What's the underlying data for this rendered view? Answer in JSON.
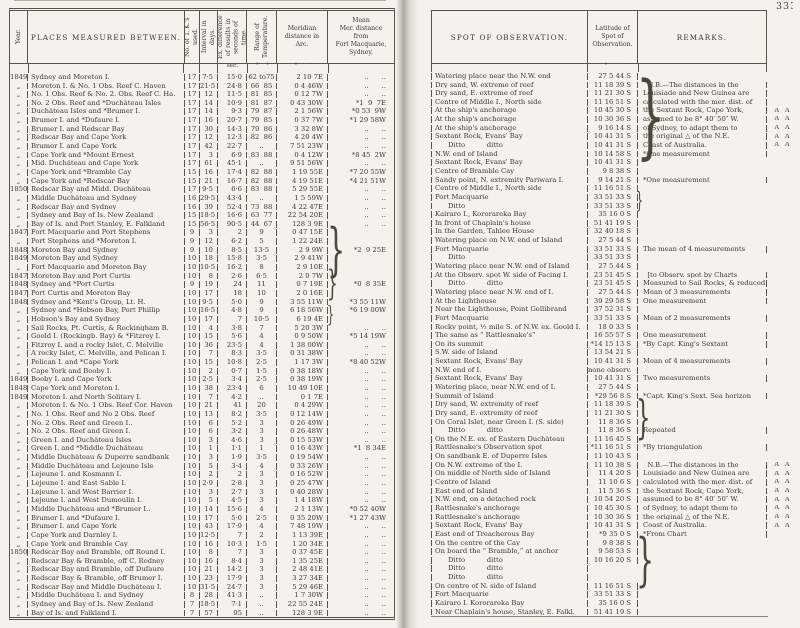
{
  "page_number": "33",
  "page_number_partial": "3",
  "left_page": {
    "columns": [
      "Year.",
      "PLACES  MEASURED  BETWEEN.",
      "No. of T. K.'s used.",
      "Interval in days.",
      "Ex. difference of results in seconds of time.",
      "Range of Temperature.",
      "Meridian\ndistance in\nArc.",
      "Mean\nMer.  distance\nfrom\nFort Macquarie,\nSydney."
    ],
    "units": [
      "",
      "",
      "",
      "",
      "sec.",
      "°    °",
      "°   ′   ″",
      ""
    ],
    "rows": [
      [
        "1849",
        "Sydney and Moreton I.",
        "17",
        "7·5",
        "15·0",
        "62 to75",
        "2 10 7E",
        "..      .."
      ],
      [
        "„",
        "Moreton I. & No. 1 Obs. Reef C. Haven",
        "17",
        "21·5",
        "24·8",
        "66  85",
        "0 4 46W",
        "..      .."
      ],
      [
        "„",
        "No. 1 Obs. Reef & No. 2. Obs. Reef C. Ha.",
        "17",
        "12",
        "11·5",
        "81  85",
        "0 12 7W",
        "..      .."
      ],
      [
        "„",
        "No. 2 Obs. Reef and *Duchâteau Isles",
        "17",
        "14",
        "10·9",
        "81  87",
        "0 43 30W",
        "*1  9  7E"
      ],
      [
        "„",
        "Duchâteau Isles and *Brumer I.",
        "17",
        "14",
        "9·3",
        "79  87",
        "2 1 56W",
        "*0 53  9W"
      ],
      [
        "„",
        "Brumer I. and *Dufaure I.",
        "17",
        "16",
        "20·7",
        "79  85",
        "0 37 7W",
        "*1 29 58W"
      ],
      [
        "„",
        "Brumer I. and Redscar Bay",
        "17",
        "30",
        "14·3",
        "79  86",
        "3 32 8W",
        "..      .."
      ],
      [
        "„",
        "Redscar Bay and Cape York",
        "17",
        "12",
        "12·3",
        "82  86",
        "4 20 4W",
        "..      .."
      ],
      [
        "„",
        "Brumer I. and Cape York",
        "17",
        "42",
        "22·7",
        "..",
        "7 51 23W",
        "..      .."
      ],
      [
        "„",
        "Cape York and *Mount Ernest",
        "17",
        "3",
        "6·9",
        "83  88",
        "0 4 12W",
        "*8 45  2W"
      ],
      [
        "„",
        "Mid. Duchâteau and Cape York",
        "17",
        "61",
        "45·1",
        "..",
        "9 51 56W",
        "..      .."
      ],
      [
        "„",
        "Cape York and *Bramble Cay",
        "15",
        "16",
        "17·4",
        "82  88",
        "1 19 55E",
        "*7 20 55W"
      ],
      [
        "„",
        "Cape York and *Redscar Bay",
        "15",
        "21",
        "16·7",
        "82  88",
        "4 19 51E",
        "*4 21 51W"
      ],
      [
        "1850",
        "Redscar Bay and Midd. Duchâteau",
        "17",
        "9·5",
        "6·6",
        "83  88",
        "5 29 55E",
        "..      .."
      ],
      [
        "„",
        "Middle Duchâteau and Sydney",
        "16",
        "29·5",
        "43·4",
        "..",
        "1 5 59W",
        "..      .."
      ],
      [
        "„",
        "Redscar Bay and Sydney",
        "16",
        "39",
        "52·4",
        "73  88",
        "4 22 47E",
        "..      .."
      ],
      [
        "„",
        "Sydney and Bay of Is. New Zealand",
        "15",
        "18·5",
        "16·6",
        "63  77",
        "22 54 20E",
        "..      .."
      ],
      [
        "„",
        "Bay of Is. and Port Stanley, E. Falkland",
        "15",
        "56·5",
        "90·5",
        "44  67",
        "128 3 9E",
        "..      .."
      ],
      [
        "1847",
        "Fort Macquarie and Port Stephens",
        "9",
        "3",
        "2",
        "9",
        "0 47 15E",
        ""
      ],
      [
        "„",
        "Port Stephens and *Moreton I.",
        "9",
        "12",
        "6·2",
        "5",
        "1 22 24E",
        ""
      ],
      [
        "1848",
        "Moreton Bay and Sydney",
        "9",
        "10",
        "8·5",
        "13·5",
        "2 9 9W",
        "*2  9 25E"
      ],
      [
        "1849",
        "Moreton Bay and Sydney",
        "10",
        "18",
        "15·8",
        "3·5",
        "2 9 41W",
        ""
      ],
      [
        "„",
        "Fort Macquarie and Moreton Bay",
        "10",
        "10·5",
        "16·2",
        "8",
        "2 9 10E",
        ""
      ],
      [
        "1847",
        "Moreton Bay and Port Curtis",
        "10",
        "8",
        "2·6",
        "6·5",
        "2 0 7W",
        ""
      ],
      [
        "1848",
        "Sydney and *Port Curtis",
        "9",
        "19",
        "24",
        "11",
        "0 7 19E",
        "*0  8 35E"
      ],
      [
        "1847",
        "Port Curtis and Moreton Bay",
        "10",
        "17",
        "18",
        "10",
        "2 0 16E",
        ""
      ],
      [
        "1848",
        "Sydney and *Kent's Group, Lt. H.",
        "10",
        "9·5",
        "5·0",
        "9",
        "3 55 11W",
        "*3 55 11W"
      ],
      [
        "„",
        "Sydney and *Hobson Bay, Port Phillip",
        "10",
        "16·5",
        "4·8",
        "9",
        "6 18 56W",
        "*6 19 00W"
      ],
      [
        "„",
        "Hobson's Bay and Sydney",
        "10",
        "17",
        "7",
        "10·5",
        "6 19 4E",
        ""
      ],
      [
        "„",
        "Sail Rocks, Pt. Curtis, & Rockingham B.",
        "10",
        "4",
        "3·8",
        "7",
        "5 20 3W",
        "..      .."
      ],
      [
        "„",
        "Goold I. (Rockingb. Bay) & *Fitzroy I.",
        "10",
        "15",
        "5·6",
        "4",
        "0 9 50W",
        "*5 14 19W"
      ],
      [
        "„",
        "Fitzroy I. and a rocky Islet, C. Melville",
        "10",
        "36",
        "23·5",
        "4",
        "1 38 00W",
        "..      .."
      ],
      [
        "„",
        "A rocky Islet, C. Melville, and Pelican I.",
        "10",
        "7",
        "8·3",
        "3·5",
        "0 31 38W",
        "..      .."
      ],
      [
        "„",
        "Pelican I. and *Cape York",
        "10",
        "15",
        "10·8",
        "2·5",
        "1 17 3W",
        "*8 40 52W"
      ],
      [
        "„",
        "Cape York and Booby I.",
        "10",
        "2",
        "0·7",
        "1·5",
        "0 38 18W",
        "..      .."
      ],
      [
        "1849",
        "Booby I. and Cape York",
        "10",
        "2·5",
        "3·4",
        "2·5",
        "0 38 19W",
        "..      .."
      ],
      [
        "1848",
        "Cape York and Moreton I.",
        "10",
        "38",
        "23·4",
        "6",
        "10 49 10E",
        "..      .."
      ],
      [
        "1849",
        "Moreton I. and North Solitary I.",
        "10",
        "7",
        "4·2",
        "..",
        "0 1 7E",
        "..      .."
      ],
      [
        "„",
        "Moreton I. & No. 1 Obs. Reef Cor. Haven",
        "10",
        "21",
        "41",
        "20",
        "0 4 29W",
        "..      .."
      ],
      [
        "„",
        "No. 1 Obs. Reef and No 2 Obs. Reef",
        "10",
        "13",
        "8·2",
        "3·5",
        "0 12 14W",
        "..      .."
      ],
      [
        "„",
        "No. 2 Obs. Reef and Green I..",
        "10",
        "6",
        "5·2",
        "3",
        "0 26 49W",
        "..      .."
      ],
      [
        "„",
        "No. 2 Obs. Reef and Green I.",
        "10",
        "6",
        "3·2",
        "3",
        "0 26 48W",
        "..      .."
      ],
      [
        "„",
        "Green I. and Duchâteau Isles",
        "10",
        "3",
        "4·6",
        "3",
        "0 15 53W",
        "..      .."
      ],
      [
        "„",
        "Green I. and *Middle Duchâteau",
        "10",
        "1",
        "1·1",
        "1",
        "0 16 43W",
        "*1  8 34E"
      ],
      [
        "„",
        "Middle Duchâteau & Duperre sandbank",
        "10",
        "3",
        "1·9",
        "3·5",
        "0 19 54W",
        "..      .."
      ],
      [
        "„",
        "Middle Duchâteau and Lejeune Isle",
        "10",
        "5",
        "3·4",
        "4",
        "0 33 26W",
        "..      .."
      ],
      [
        "„",
        "Lejeune I. and Kosmann I.",
        "10",
        "2",
        "2",
        "3",
        "0 16 52W",
        "..      .."
      ],
      [
        "„",
        "Lejeune I. and East Sable I.",
        "10",
        "2·9",
        "2·8",
        "3",
        "0 25 47W",
        "..      .."
      ],
      [
        "„",
        "Lejeune I. and West Barrier I.",
        "10",
        "3",
        "2·7",
        "3",
        "0 40 28W",
        "..      .."
      ],
      [
        "„",
        "Lejeune I. and West Dumoulin I.",
        "10",
        "5",
        "4·5",
        "3",
        "1 4 18W",
        "..      .."
      ],
      [
        "„",
        "Middle Duchâteau and *Brumer I..",
        "10",
        "14",
        "15·6",
        "4",
        "2 1 13W",
        "*0 52 40W"
      ],
      [
        "„",
        "Brumer I. and *Dufaure I.",
        "10",
        "17",
        "5·0",
        "2·5",
        "0 35 20W",
        "*1 27 43W"
      ],
      [
        "„",
        "Brumer I. and Cape York",
        "10",
        "43",
        "17·9",
        "4",
        "7 48 19W",
        "..      .."
      ],
      [
        "„",
        "Cape York and Darnley I.",
        "10",
        "12·5",
        "7",
        "2",
        "1 13 39E",
        "..      .."
      ],
      [
        "„",
        "Cape York and Bramble Cay",
        "10",
        "16",
        "10·3",
        "1·5",
        "1 20 34E",
        "..      .."
      ],
      [
        "1850",
        "Redscar Bay and Bramble, off Round I.",
        "10",
        "8",
        "7",
        "3",
        "0 37 45E",
        "..      .."
      ],
      [
        "„",
        "Redscar Bay & Bramble, off C. Rodney",
        "10",
        "16",
        "8·4",
        "3",
        "1 35 25E",
        "..      .."
      ],
      [
        "„",
        "Redscar Bay and Bramble, off Dufaure",
        "10",
        "21",
        "14·2",
        "3",
        "2 48 41E",
        "..      .."
      ],
      [
        "„",
        "Redscar Bay & Bramble, off Brumer I.",
        "10",
        "23",
        "17·9",
        "3",
        "3 27 34E",
        "..      .."
      ],
      [
        "„",
        "Redscar Bay and Middle Duchâteau I.",
        "10",
        "31·5",
        "24·7",
        "3",
        "5 29 46E",
        "..      .."
      ],
      [
        "„",
        "Middle Duchâteau I. and Sydney",
        "8",
        "28",
        "41·3",
        "..",
        "1 7 30W",
        "..      .."
      ],
      [
        "„",
        "Sydney and Bay of Is. New Zealand",
        "7",
        "18·5",
        "7·1",
        "..",
        "22 55 24E",
        "..      .."
      ],
      [
        "„",
        "Bay of Is. and Falkland I.",
        "7",
        "57",
        "95",
        "..",
        "128 3 9E",
        "..      .."
      ]
    ],
    "braces": [
      {
        "from": 18,
        "to": 22
      },
      {
        "from": 23,
        "to": 25
      },
      {
        "from": 27,
        "to": 28
      }
    ]
  },
  "right_page": {
    "columns": [
      "SPOT  OF  OBSERVATION.",
      "Latitude of\nSpot of\nObservation.",
      "REMARKS."
    ],
    "lat_units": "°   ′   ″",
    "rows": [
      [
        "Watering place near the N.W. end",
        "27 5 44 S",
        "",
        ""
      ],
      [
        "Dry sand, W. extreme of reef",
        "11 18 39 S",
        "  N.B.—The distances in the",
        ""
      ],
      [
        "Dry sand, E. extreme of reef",
        "11 21 30 S",
        "Louisiade and New Guinea are",
        ""
      ],
      [
        "Centre of Middle I., North side",
        "11 16 51 S",
        "calculated with the mer. dist. of",
        ""
      ],
      [
        "At the ship's anchorage",
        "10 45 30 S",
        "the Sextant Rock, Cape York,",
        "A A"
      ],
      [
        "At the ship's anchorage",
        "10 30 36 S",
        "assumed to be 8° 40′ 50″ W.",
        "A A"
      ],
      [
        "At the ship's anchorage",
        "9 16 14 S",
        "of Sydney, to adapt them to",
        "A A"
      ],
      [
        "Sextant Rock, Evans' Bay",
        "10 41 31 S",
        "the original △ of the N.E.",
        "A A"
      ],
      [
        "      Ditto          ditto",
        "10 41 31 S",
        "Coast of Australia.",
        "A A"
      ],
      [
        "N.W. end of Island",
        "10 14 58 S",
        "*One measurement",
        ""
      ],
      [
        "Sextant Rock, Evans' Bay",
        "10 41 31 S",
        "",
        ""
      ],
      [
        "Centre of Bramble Cay",
        "9 8 38 S",
        "",
        ""
      ],
      [
        "Sandy point, N. extremity Pariwara I.",
        "9 14 21 S",
        "*One measurement",
        ""
      ],
      [
        "Centre of Middle I., North side",
        "11 16 51 S",
        "",
        ""
      ],
      [
        "Port Macquarie",
        "33 51 33 S",
        "",
        ""
      ],
      [
        "      Ditto",
        "33 51 33 S",
        "",
        ""
      ],
      [
        "Kairaro I., Kororareka Bay",
        "35 16 0 S",
        "",
        ""
      ],
      [
        "In front of Chaplain's house",
        "51 41 19 S",
        "",
        ""
      ],
      [
        "In the Garden, Tahlee House",
        "32 40 18 S",
        "",
        ""
      ],
      [
        "Watering place on N.W. end of Island",
        "27 5 44 S",
        "",
        ""
      ],
      [
        "Fort Macquarie",
        "33 51 33 S",
        "The mean of 4 measurements",
        ""
      ],
      [
        "      Ditto",
        "33 51 33 S",
        "",
        ""
      ],
      [
        "Watering place near N.W. end of Island",
        "27 5 44 S",
        "",
        ""
      ],
      [
        "At the Observ. spot W. side of Facing I.",
        "23 51 45 S",
        "  [to Observ. spot by Charts",
        ""
      ],
      [
        "      Ditto          ditto",
        "23 51 45 S",
        "Measured to Sail Rocks, & reduced",
        ""
      ],
      [
        "Watering place near N.W. end of I.",
        "27 5 44 S",
        "Mean of 3 measurements",
        ""
      ],
      [
        "At the Lighthouse",
        "39 29 58 S",
        "One measurement",
        ""
      ],
      [
        "Near the Lighthouse, Point Gellibrand",
        "37 52 31 S",
        "",
        ""
      ],
      [
        "Fort Macquarie",
        "33 51 33 S",
        "Mean of 2 measurements",
        ""
      ],
      [
        "Rocky point, ½ mile S. of N.W. ex. Goold I.",
        "18 0 33 S",
        "",
        ""
      ],
      [
        "The same as “ Rattlesnake's”",
        "16 55 57 S",
        "One measurement",
        ""
      ],
      [
        "On its summit",
        "*14 15 13 S",
        "*By Capt. King's Sextant",
        ""
      ],
      [
        "S.W. side of Island",
        "13 54 21 S",
        "",
        ""
      ],
      [
        "Sextant Rock, Evans' Bay",
        "10 41 31 S",
        "Mean of 4 measurements",
        ""
      ],
      [
        "N.W. end of I.",
        "none observ.",
        "",
        ""
      ],
      [
        "Sextant Rock, Evans' Bay",
        "10 41 31 S",
        "Two measurements",
        ""
      ],
      [
        "Watering place, near N.W. end of I.",
        "27 5 44 S",
        "",
        ""
      ],
      [
        "Summit of Island",
        "*29 56 8 S",
        "*Capt. King's Sext. Sea horizon",
        ""
      ],
      [
        "Dry sand, W. extremity of reef",
        "11 18 39 S",
        "",
        ""
      ],
      [
        "Dry sand, E. extremity of reef",
        "11 21 30 S",
        "",
        ""
      ],
      [
        "On Coral Islet, near Green I. (S. side)",
        "11 8 36 S",
        "",
        ""
      ],
      [
        "      Ditto          ditto",
        "11 8 36 S",
        "Repeated",
        ""
      ],
      [
        "On the N.E. ex. of Eastern Duchâteau",
        "11 16 45 S",
        "",
        ""
      ],
      [
        "Rattlesnake's Observation spot",
        "*11 16 51 S",
        "*By triangulation",
        ""
      ],
      [
        "On sandbank E. of Duperre Isles",
        "11 10 43 S",
        "",
        ""
      ],
      [
        "On N.W. extreme of the I.",
        "11 10 38 S",
        "  N.B.—The distances in the",
        "A A"
      ],
      [
        "On middle of North side of Island",
        "11 4 20 S",
        "Louisiade and New Guinea are",
        "A A"
      ],
      [
        "Centre of Island",
        "11 10 6 S",
        "calculated with the mer. dist. of",
        "A A"
      ],
      [
        "East end of Island",
        "11 5 36 S",
        "the Sextant Rock, Cape York,",
        "A A"
      ],
      [
        "N.W. end, on a detached rock",
        "10 54 20 S",
        "assumed to be 8° 40′ 50″ W.",
        "A A"
      ],
      [
        "Rattlesnake's anchorage",
        "10 45 30 S",
        "of Sydney, to adapt them to",
        "A A"
      ],
      [
        "Rattlesnake's anchorage",
        "10 30 36 S",
        "the original △ of the N.E.",
        "A A"
      ],
      [
        "Sextant Rock, Evans' Bay",
        "10 41 31 S",
        "Coast of Australia.",
        "A A"
      ],
      [
        "East end of Treacherous Bay",
        "*9 35 0 S",
        "*From Chart",
        ""
      ],
      [
        "On the centre of the Cay",
        "9 8 38 S",
        "",
        ""
      ],
      [
        "On board the “ Bramble,” at anchor",
        "9 58 53 S",
        "",
        ""
      ],
      [
        "      Ditto          ditto",
        "10 16 20 S",
        "",
        ""
      ],
      [
        "      Ditto          ditto",
        "",
        "",
        ""
      ],
      [
        "      Ditto          ditto",
        "",
        "",
        ""
      ],
      [
        "On centre of N. side of Island",
        "11 16 51 S",
        "",
        ""
      ],
      [
        "Fort Macquarie",
        "33 51 33 S",
        "",
        ""
      ],
      [
        "Kairaro I. Kororareka Bay",
        "35 16 0 S",
        "",
        ""
      ],
      [
        "Near Chaplain's house, Stanley, E. Falkl.",
        "51 41 19 S",
        "",
        ""
      ]
    ],
    "braces": [
      {
        "from": 1,
        "to": 8
      },
      {
        "from": 14,
        "to": 15
      },
      {
        "from": 38,
        "to": 41
      },
      {
        "from": 54,
        "to": 58
      }
    ]
  }
}
